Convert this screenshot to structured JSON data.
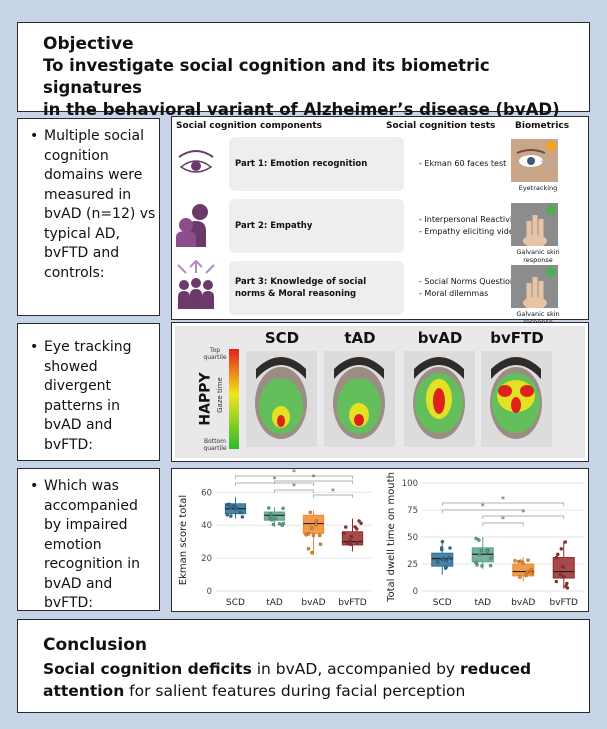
{
  "objective": {
    "heading": "Objective",
    "line1": "To investigate social cognition and its biometric signatures",
    "line2": "in the behavioral variant of Alzheimer’s disease (bvAD)"
  },
  "findings": [
    "Multiple social cognition domains were measured in bvAD (n=12) vs typical AD, bvFTD and controls:",
    "Eye tracking showed divergent patterns in bvAD and bvFTD:",
    "Which was accompanied by impaired emotion recognition in bvAD and bvFTD:"
  ],
  "table": {
    "col_components": "Social cognition components",
    "col_tests": "Social cognition tests",
    "col_biometrics": "Biometrics",
    "rows": [
      {
        "part": "Part 1: Emotion recognition",
        "tests": [
          "-   Ekman 60 faces test"
        ],
        "biometric": "Eyetracking"
      },
      {
        "part": "Part 2: Empathy",
        "tests": [
          "-   Interpersonal Reactivity Index",
          "-   Empathy eliciting videos"
        ],
        "biometric": "Galvanic skin response"
      },
      {
        "part_line1": "Part 3: Knowledge of social",
        "part_line2": "norms & Moral reasoning",
        "tests": [
          "-   Social Norms Questionnaire",
          "-   Moral dilemmas"
        ],
        "biometric": "Galvanic skin response"
      }
    ]
  },
  "heatmap": {
    "groups": [
      "SCD",
      "tAD",
      "bvAD",
      "bvFTD"
    ],
    "emotion": "HAPPY",
    "scale_label": "Gaze time",
    "top_label": "Top quartile",
    "bottom_label": "Bottom quartile",
    "colors": {
      "high": "#e0201c",
      "mid": "#f2e51c",
      "low": "#2dbb2d"
    }
  },
  "chart_data": [
    {
      "type": "box",
      "ylabel": "Ekman score total",
      "categories": [
        "SCD",
        "tAD",
        "bvAD",
        "bvFTD"
      ],
      "ylim": [
        0,
        62
      ],
      "yticks": [
        0,
        20,
        40,
        60
      ],
      "colors": [
        "#2a6f96",
        "#5aa58a",
        "#ee8a2a",
        "#962a2a"
      ],
      "boxes": [
        {
          "min": 44,
          "q1": 47,
          "median": 50,
          "q3": 53,
          "max": 57
        },
        {
          "min": 39,
          "q1": 43,
          "median": 46,
          "q3": 48,
          "max": 51
        },
        {
          "min": 22,
          "q1": 35,
          "median": 41,
          "q3": 46,
          "max": 49
        },
        {
          "min": 24,
          "q1": 28,
          "median": 30,
          "q3": 36,
          "max": 44
        }
      ],
      "significance": [
        "*",
        "*",
        "*",
        "*",
        "*"
      ]
    },
    {
      "type": "box",
      "ylabel": "Total dwell time on mouth",
      "categories": [
        "SCD",
        "tAD",
        "bvAD",
        "bvFTD"
      ],
      "ylim": [
        0,
        100
      ],
      "yticks": [
        0,
        25,
        50,
        75,
        100
      ],
      "colors": [
        "#2a6f96",
        "#5aa58a",
        "#ee8a2a",
        "#962a2a"
      ],
      "boxes": [
        {
          "min": 15,
          "q1": 23,
          "median": 30,
          "q3": 35,
          "max": 47
        },
        {
          "min": 20,
          "q1": 27,
          "median": 34,
          "q3": 40,
          "max": 50
        },
        {
          "min": 9,
          "q1": 14,
          "median": 18,
          "q3": 25,
          "max": 31
        },
        {
          "min": 2,
          "q1": 12,
          "median": 18,
          "q3": 31,
          "max": 46
        }
      ],
      "significance": [
        "*",
        "*",
        "*",
        "*"
      ]
    }
  ],
  "conclusion": {
    "heading": "Conclusion",
    "bold1": "Social cognition deficits",
    "text1": " in bvAD, accompanied by ",
    "bold2": "reduced",
    "bold3": "attention",
    "text2": " for salient features during facial perception"
  }
}
